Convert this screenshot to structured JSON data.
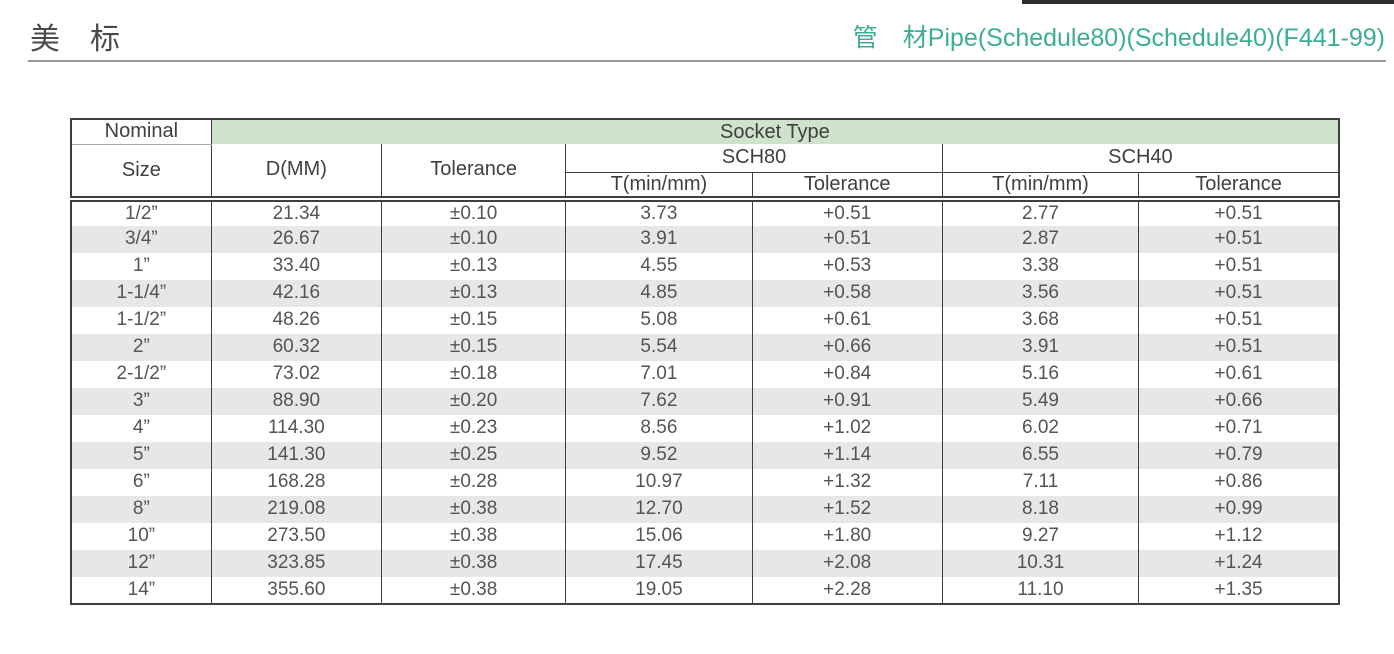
{
  "page": {
    "title_cn": "美　标",
    "subtitle": "管　材Pipe(Schedule80)(Schedule40)(F441-99)",
    "colors": {
      "subtitle_teal": "#3cae94",
      "socket_band_green": "#cfe2cb",
      "zebra_gray": "#e7e7e7",
      "border_dark": "#3f3f3f"
    }
  },
  "table": {
    "header": {
      "nominal": "Nominal",
      "size": "Size",
      "socket_type": "Socket Type",
      "d_mm": "D(MM)",
      "tolerance": "Tolerance",
      "sch80": "SCH80",
      "sch40": "SCH40",
      "t_min_mm": "T(min/mm)",
      "t_tolerance": "Tolerance"
    },
    "columns": [
      "nominal_size",
      "d_mm",
      "d_tolerance",
      "sch80_t_min_mm",
      "sch80_tolerance",
      "sch40_t_min_mm",
      "sch40_tolerance"
    ],
    "rows": [
      [
        "1/2”",
        "21.34",
        "±0.10",
        "3.73",
        "+0.51",
        "2.77",
        "+0.51"
      ],
      [
        "3/4”",
        "26.67",
        "±0.10",
        "3.91",
        "+0.51",
        "2.87",
        "+0.51"
      ],
      [
        "1”",
        "33.40",
        "±0.13",
        "4.55",
        "+0.53",
        "3.38",
        "+0.51"
      ],
      [
        "1-1/4”",
        "42.16",
        "±0.13",
        "4.85",
        "+0.58",
        "3.56",
        "+0.51"
      ],
      [
        "1-1/2”",
        "48.26",
        "±0.15",
        "5.08",
        "+0.61",
        "3.68",
        "+0.51"
      ],
      [
        "2”",
        "60.32",
        "±0.15",
        "5.54",
        "+0.66",
        "3.91",
        "+0.51"
      ],
      [
        "2-1/2”",
        "73.02",
        "±0.18",
        "7.01",
        "+0.84",
        "5.16",
        "+0.61"
      ],
      [
        "3”",
        "88.90",
        "±0.20",
        "7.62",
        "+0.91",
        "5.49",
        "+0.66"
      ],
      [
        "4”",
        "114.30",
        "±0.23",
        "8.56",
        "+1.02",
        "6.02",
        "+0.71"
      ],
      [
        "5”",
        "141.30",
        "±0.25",
        "9.52",
        "+1.14",
        "6.55",
        "+0.79"
      ],
      [
        "6”",
        "168.28",
        "±0.28",
        "10.97",
        "+1.32",
        "7.11",
        "+0.86"
      ],
      [
        "8”",
        "219.08",
        "±0.38",
        "12.70",
        "+1.52",
        "8.18",
        "+0.99"
      ],
      [
        "10”",
        "273.50",
        "±0.38",
        "15.06",
        "+1.80",
        "9.27",
        "+1.12"
      ],
      [
        "12”",
        "323.85",
        "±0.38",
        "17.45",
        "+2.08",
        "10.31",
        "+1.24"
      ],
      [
        "14”",
        "355.60",
        "±0.38",
        "19.05",
        "+2.28",
        "11.10",
        "+1.35"
      ]
    ]
  }
}
